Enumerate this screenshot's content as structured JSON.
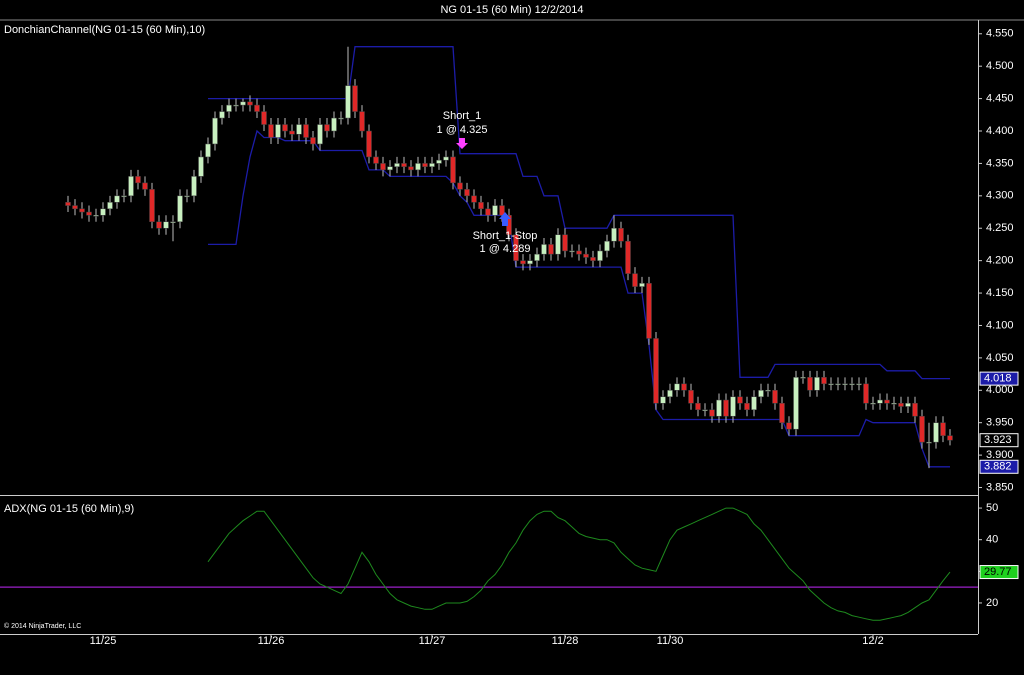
{
  "chart_data": [
    {
      "type": "candlestick",
      "title": "NG 01-15 (60 Min)  12/2/2014",
      "panel_label": "DonchianChannel(NG 01-15 (60 Min),10)",
      "categories": [
        null,
        null,
        null,
        null,
        null,
        "11/25",
        null,
        null,
        null,
        null,
        null,
        null,
        null,
        null,
        null,
        null,
        null,
        null,
        null,
        null,
        null,
        null,
        null,
        null,
        null,
        null,
        null,
        null,
        null,
        "11/26",
        null,
        null,
        null,
        null,
        null,
        null,
        null,
        null,
        null,
        null,
        null,
        null,
        null,
        null,
        null,
        null,
        null,
        null,
        null,
        null,
        null,
        null,
        "11/27",
        null,
        null,
        null,
        null,
        null,
        null,
        null,
        null,
        null,
        null,
        null,
        null,
        null,
        null,
        null,
        null,
        null,
        null,
        "11/28",
        null,
        null,
        null,
        null,
        null,
        null,
        null,
        null,
        null,
        null,
        null,
        null,
        null,
        null,
        "11/30",
        null,
        null,
        null,
        null,
        null,
        null,
        null,
        null,
        null,
        null,
        null,
        null,
        null,
        null,
        null,
        null,
        null,
        null,
        null,
        null,
        null,
        null,
        null,
        null,
        null,
        null,
        null,
        null,
        "12/2",
        null,
        null,
        null,
        null,
        null,
        null,
        null,
        null,
        null,
        null,
        null
      ],
      "ylim": [
        3.84,
        4.562
      ],
      "yticks": [
        {
          "value": 3.85,
          "label": "3.850"
        },
        {
          "value": 3.9,
          "label": "3.900"
        },
        {
          "value": 3.95,
          "label": "3.950"
        },
        {
          "value": 4.0,
          "label": "4.000"
        },
        {
          "value": 4.05,
          "label": "4.050"
        },
        {
          "value": 4.1,
          "label": "4.100"
        },
        {
          "value": 4.15,
          "label": "4.150"
        },
        {
          "value": 4.2,
          "label": "4.200"
        },
        {
          "value": 4.25,
          "label": "4.250"
        },
        {
          "value": 4.3,
          "label": "4.300"
        },
        {
          "value": 4.35,
          "label": "4.350"
        },
        {
          "value": 4.4,
          "label": "4.400"
        },
        {
          "value": 4.45,
          "label": "4.450"
        },
        {
          "value": 4.5,
          "label": "4.500"
        },
        {
          "value": 4.55,
          "label": "4.550"
        }
      ],
      "series": [
        {
          "up_color": "#c8f0c0",
          "down_color": "#e02828",
          "close_label": "3.923",
          "open": [
            4.29,
            4.285,
            4.28,
            4.275,
            4.27,
            4.27,
            4.28,
            4.29,
            4.3,
            4.3,
            4.33,
            4.32,
            4.31,
            4.26,
            4.25,
            4.26,
            4.26,
            4.3,
            4.3,
            4.33,
            4.36,
            4.38,
            4.42,
            4.43,
            4.44,
            4.44,
            4.445,
            4.44,
            4.43,
            4.41,
            4.39,
            4.41,
            4.4,
            4.395,
            4.41,
            4.39,
            4.38,
            4.41,
            4.4,
            4.42,
            4.42,
            4.47,
            4.43,
            4.4,
            4.36,
            4.35,
            4.34,
            4.345,
            4.35,
            4.345,
            4.34,
            4.35,
            4.345,
            4.35,
            4.355,
            4.36,
            4.32,
            4.31,
            4.3,
            4.29,
            4.28,
            4.27,
            4.285,
            4.27,
            4.24,
            4.2,
            4.195,
            4.2,
            4.21,
            4.225,
            4.21,
            4.24,
            4.215,
            4.215,
            4.21,
            4.205,
            4.2,
            4.215,
            4.23,
            4.25,
            4.23,
            4.18,
            4.16,
            4.165,
            4.08,
            3.98,
            3.99,
            4.0,
            4.01,
            4.0,
            3.98,
            3.97,
            3.97,
            3.96,
            3.985,
            3.96,
            3.99,
            3.98,
            3.97,
            3.99,
            4.0,
            4.0,
            3.98,
            3.95,
            3.94,
            4.02,
            4.02,
            4.0,
            4.02,
            4.01,
            4.01,
            4.01,
            4.01,
            4.01,
            4.01,
            3.98,
            3.98,
            3.985,
            3.98,
            3.98,
            3.975,
            3.98,
            3.96,
            3.92,
            3.92,
            3.95,
            3.93
          ],
          "high": [
            4.3,
            4.295,
            4.29,
            4.285,
            4.28,
            4.29,
            4.3,
            4.31,
            4.31,
            4.34,
            4.34,
            4.33,
            4.32,
            4.27,
            4.27,
            4.27,
            4.31,
            4.31,
            4.34,
            4.37,
            4.39,
            4.43,
            4.44,
            4.45,
            4.45,
            4.45,
            4.455,
            4.45,
            4.44,
            4.42,
            4.42,
            4.42,
            4.41,
            4.42,
            4.42,
            4.4,
            4.42,
            4.42,
            4.43,
            4.43,
            4.53,
            4.48,
            4.44,
            4.41,
            4.37,
            4.36,
            4.355,
            4.36,
            4.36,
            4.355,
            4.36,
            4.36,
            4.36,
            4.365,
            4.37,
            4.37,
            4.33,
            4.32,
            4.31,
            4.3,
            4.29,
            4.295,
            4.295,
            4.28,
            4.25,
            4.21,
            4.21,
            4.22,
            4.235,
            4.235,
            4.25,
            4.25,
            4.225,
            4.225,
            4.22,
            4.215,
            4.225,
            4.24,
            4.27,
            4.26,
            4.24,
            4.19,
            4.175,
            4.175,
            4.09,
            4.0,
            4.01,
            4.02,
            4.02,
            4.01,
            3.99,
            3.98,
            3.98,
            3.995,
            3.995,
            4.0,
            4.0,
            3.99,
            4.0,
            4.01,
            4.01,
            4.01,
            3.99,
            3.96,
            4.03,
            4.03,
            4.03,
            4.03,
            4.03,
            4.02,
            4.02,
            4.02,
            4.02,
            4.02,
            4.02,
            3.99,
            3.995,
            3.995,
            3.99,
            3.99,
            3.99,
            3.99,
            3.97,
            3.95,
            3.96,
            3.96,
            3.94
          ],
          "low": [
            4.275,
            4.27,
            4.265,
            4.26,
            4.26,
            4.26,
            4.27,
            4.28,
            4.29,
            4.29,
            4.31,
            4.3,
            4.25,
            4.24,
            4.24,
            4.23,
            4.25,
            4.29,
            4.29,
            4.32,
            4.35,
            4.37,
            4.41,
            4.42,
            4.43,
            4.43,
            4.43,
            4.42,
            4.4,
            4.38,
            4.38,
            4.39,
            4.385,
            4.385,
            4.38,
            4.37,
            4.37,
            4.39,
            4.39,
            4.41,
            4.41,
            4.42,
            4.39,
            4.35,
            4.34,
            4.33,
            4.33,
            4.335,
            4.335,
            4.33,
            4.33,
            4.335,
            4.335,
            4.34,
            4.345,
            4.31,
            4.3,
            4.29,
            4.28,
            4.27,
            4.26,
            4.26,
            4.26,
            4.23,
            4.19,
            4.185,
            4.185,
            4.19,
            4.2,
            4.2,
            4.2,
            4.205,
            4.205,
            4.2,
            4.195,
            4.19,
            4.19,
            4.205,
            4.22,
            4.22,
            4.17,
            4.15,
            4.15,
            4.07,
            3.97,
            3.97,
            3.98,
            3.99,
            3.99,
            3.97,
            3.96,
            3.96,
            3.95,
            3.95,
            3.95,
            3.95,
            3.97,
            3.96,
            3.96,
            3.98,
            3.99,
            3.97,
            3.94,
            3.93,
            3.93,
            4.01,
            3.99,
            3.99,
            4.0,
            4.0,
            4.0,
            4.0,
            4.0,
            4.0,
            3.97,
            3.97,
            3.97,
            3.97,
            3.97,
            3.965,
            3.965,
            3.95,
            3.91,
            3.88,
            3.91,
            3.92,
            3.915
          ],
          "close": [
            4.285,
            4.28,
            4.275,
            4.27,
            4.27,
            4.28,
            4.29,
            4.3,
            4.3,
            4.33,
            4.32,
            4.31,
            4.26,
            4.25,
            4.26,
            4.26,
            4.3,
            4.3,
            4.33,
            4.36,
            4.38,
            4.42,
            4.43,
            4.44,
            4.44,
            4.445,
            4.44,
            4.43,
            4.41,
            4.39,
            4.41,
            4.4,
            4.395,
            4.41,
            4.39,
            4.38,
            4.41,
            4.4,
            4.42,
            4.42,
            4.47,
            4.43,
            4.4,
            4.36,
            4.35,
            4.34,
            4.345,
            4.35,
            4.345,
            4.34,
            4.35,
            4.345,
            4.35,
            4.355,
            4.36,
            4.32,
            4.31,
            4.3,
            4.29,
            4.28,
            4.27,
            4.285,
            4.27,
            4.24,
            4.2,
            4.195,
            4.2,
            4.21,
            4.225,
            4.21,
            4.24,
            4.215,
            4.215,
            4.21,
            4.205,
            4.2,
            4.215,
            4.23,
            4.25,
            4.23,
            4.18,
            4.16,
            4.165,
            4.08,
            3.98,
            3.99,
            4.0,
            4.01,
            4.0,
            3.98,
            3.97,
            3.97,
            3.96,
            3.985,
            3.96,
            3.99,
            3.98,
            3.97,
            3.99,
            4.0,
            4.0,
            3.98,
            3.95,
            3.94,
            4.02,
            4.02,
            4.0,
            4.02,
            4.01,
            4.01,
            4.01,
            4.01,
            4.01,
            4.01,
            3.98,
            3.98,
            3.985,
            3.98,
            3.98,
            3.975,
            3.98,
            3.96,
            3.92,
            3.92,
            3.95,
            3.93,
            3.923
          ]
        }
      ],
      "channel": {
        "color": "#1c1ca8",
        "upper_label": "4.018",
        "lower_label": "3.882",
        "upper": [
          null,
          null,
          null,
          null,
          null,
          null,
          null,
          null,
          null,
          null,
          null,
          null,
          null,
          null,
          null,
          null,
          null,
          null,
          null,
          null,
          4.45,
          4.45,
          4.45,
          4.45,
          4.45,
          4.45,
          4.45,
          4.45,
          4.45,
          4.45,
          4.45,
          4.45,
          4.45,
          4.45,
          4.45,
          4.45,
          4.45,
          4.45,
          4.45,
          4.45,
          4.45,
          4.53,
          4.53,
          4.53,
          4.53,
          4.53,
          4.53,
          4.53,
          4.53,
          4.53,
          4.53,
          4.53,
          4.53,
          4.53,
          4.53,
          4.53,
          4.365,
          4.365,
          4.365,
          4.365,
          4.365,
          4.365,
          4.365,
          4.365,
          4.365,
          4.33,
          4.33,
          4.33,
          4.3,
          4.3,
          4.3,
          4.25,
          4.25,
          4.25,
          4.25,
          4.25,
          4.25,
          4.25,
          4.27,
          4.27,
          4.27,
          4.27,
          4.27,
          4.27,
          4.27,
          4.27,
          4.27,
          4.27,
          4.27,
          4.27,
          4.27,
          4.27,
          4.27,
          4.27,
          4.27,
          4.27,
          4.02,
          4.02,
          4.02,
          4.02,
          4.02,
          4.04,
          4.04,
          4.04,
          4.04,
          4.04,
          4.04,
          4.04,
          4.04,
          4.04,
          4.04,
          4.04,
          4.04,
          4.04,
          4.04,
          4.04,
          4.04,
          4.03,
          4.03,
          4.03,
          4.03,
          4.03,
          4.018,
          4.018,
          4.018,
          4.018,
          4.018
        ],
        "lower": [
          null,
          null,
          null,
          null,
          null,
          null,
          null,
          null,
          null,
          null,
          null,
          null,
          null,
          null,
          null,
          null,
          null,
          null,
          null,
          null,
          4.225,
          4.225,
          4.225,
          4.225,
          4.225,
          4.3,
          4.36,
          4.4,
          4.39,
          4.39,
          4.39,
          4.385,
          4.385,
          4.385,
          4.385,
          4.385,
          4.37,
          4.37,
          4.37,
          4.37,
          4.37,
          4.37,
          4.37,
          4.34,
          4.34,
          4.34,
          4.33,
          4.33,
          4.33,
          4.33,
          4.33,
          4.33,
          4.33,
          4.33,
          4.33,
          4.32,
          4.3,
          4.29,
          4.27,
          4.27,
          4.27,
          4.27,
          4.27,
          4.26,
          4.19,
          4.19,
          4.19,
          4.19,
          4.19,
          4.19,
          4.19,
          4.19,
          4.19,
          4.19,
          4.19,
          4.19,
          4.19,
          4.19,
          4.19,
          4.19,
          4.15,
          4.15,
          4.15,
          4.07,
          3.97,
          3.955,
          3.955,
          3.955,
          3.955,
          3.955,
          3.955,
          3.955,
          3.955,
          3.955,
          3.955,
          3.955,
          3.955,
          3.955,
          3.955,
          3.955,
          3.955,
          3.955,
          3.955,
          3.93,
          3.93,
          3.93,
          3.93,
          3.93,
          3.93,
          3.93,
          3.93,
          3.93,
          3.93,
          3.93,
          3.955,
          3.95,
          3.95,
          3.95,
          3.95,
          3.95,
          3.95,
          3.95,
          3.91,
          3.882,
          3.882,
          3.882,
          3.882
        ]
      },
      "annotations": [
        {
          "text": "Short_1",
          "detail": "1 @ 4.325",
          "color": "#ff40ff"
        },
        {
          "text": "Short_1-Stop",
          "detail": "1 @ 4.289",
          "color": "#3a5cff"
        }
      ]
    },
    {
      "type": "line",
      "panel_label": "ADX(NG 01-15 (60 Min),9)",
      "footnote": "© 2014 NinjaTrader, LLC",
      "color": "#1e8a1e",
      "value_label": "29.77",
      "ylim": [
        10.5,
        53.5
      ],
      "yticks": [
        20,
        30,
        40,
        50
      ],
      "reference_line": {
        "value": 25,
        "color": "#9a20c8"
      },
      "values": [
        null,
        null,
        null,
        null,
        null,
        null,
        null,
        null,
        null,
        null,
        null,
        null,
        null,
        null,
        null,
        null,
        null,
        null,
        null,
        null,
        33,
        36,
        39,
        42,
        44,
        46,
        47.5,
        49,
        49,
        46,
        43,
        40,
        37,
        34,
        31,
        28,
        26,
        25,
        24,
        23,
        26,
        31,
        36,
        33,
        29,
        26,
        23,
        21,
        20,
        19,
        18.5,
        18,
        18,
        19,
        20,
        20,
        20,
        20.5,
        22,
        24,
        27,
        29,
        32,
        36,
        39,
        43,
        46,
        48,
        49,
        49,
        47,
        46,
        44,
        42,
        41,
        40.5,
        40,
        40,
        39,
        36,
        34,
        32,
        31,
        30.5,
        30,
        35,
        40,
        43,
        44,
        45,
        46,
        47,
        48,
        49,
        50,
        50,
        49,
        48,
        45,
        43,
        40,
        37,
        34,
        31,
        29,
        27,
        24,
        22,
        20,
        18.5,
        17.5,
        17,
        16,
        15.5,
        15,
        14.5,
        14.5,
        15,
        15.5,
        16,
        17,
        18.5,
        20,
        21,
        24,
        27,
        29.77
      ]
    }
  ]
}
